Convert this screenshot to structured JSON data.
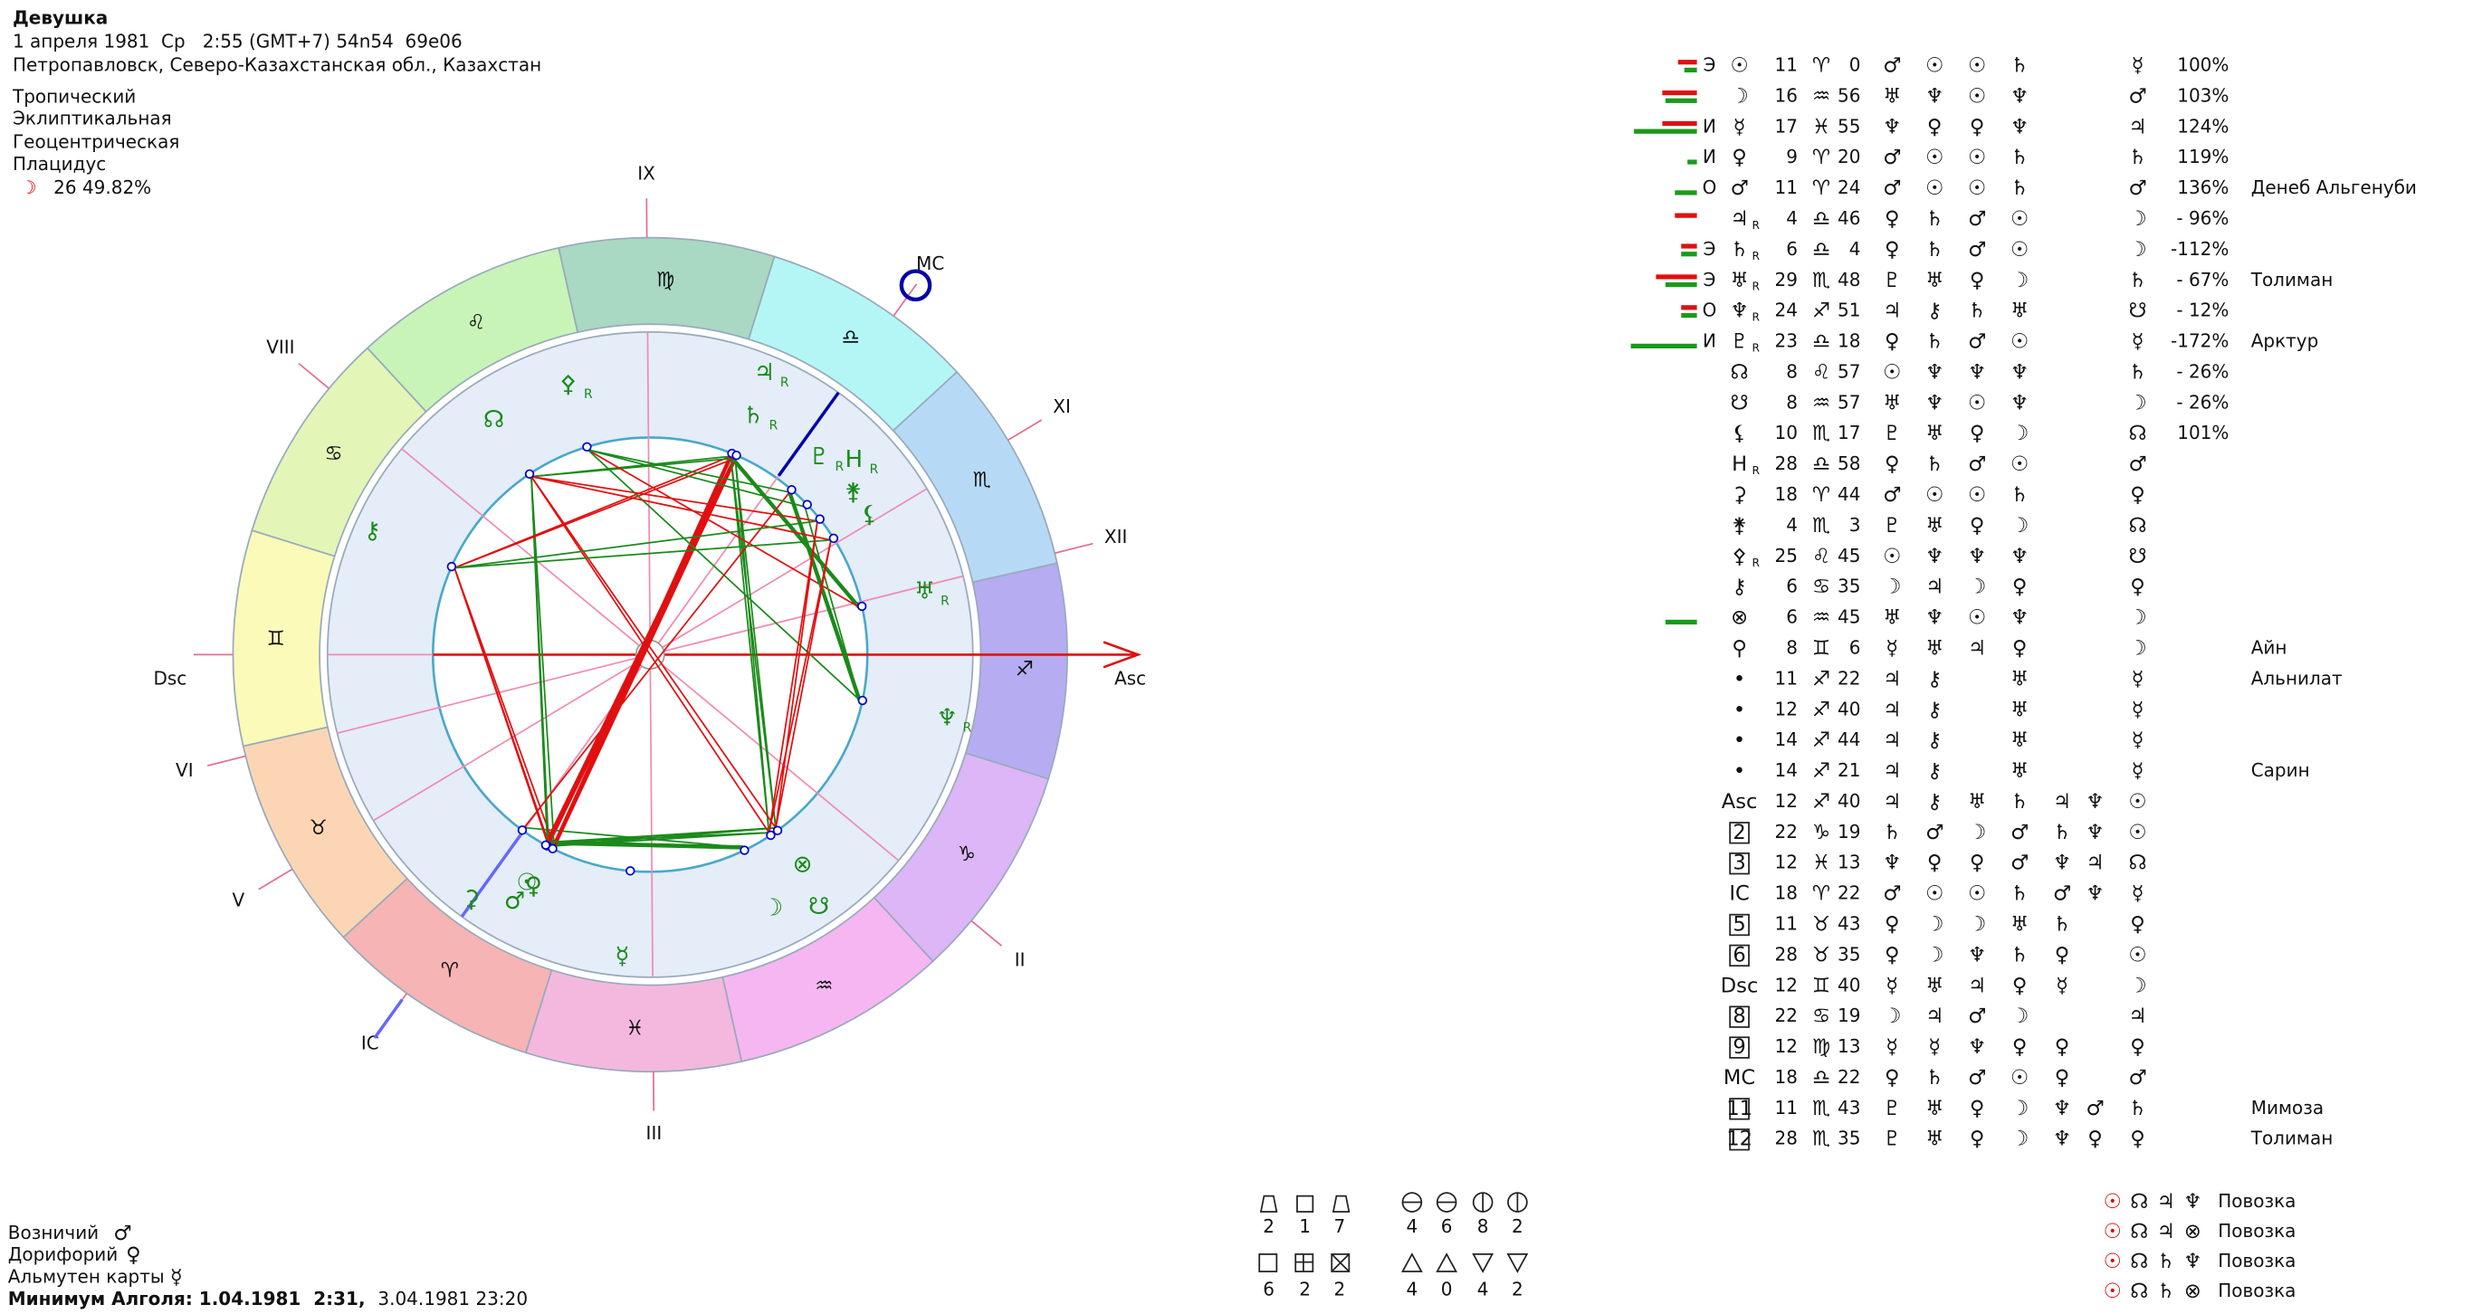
{
  "header": {
    "name": "Девушка",
    "datetime": "1 апреля 1981  Ср   2:55 (GMT+7) 54n54  69e06",
    "place": "Петропавловск, Северо-Казахстанская обл., Казахстан",
    "settings": [
      "Тропический",
      "Эклиптикальная",
      "Геоцентрическая",
      "Плацидус"
    ],
    "moon": {
      "glyph": "☽",
      "value": "26 49.82%"
    }
  },
  "wheel": {
    "signs": [
      "♈",
      "♉",
      "♊",
      "♋",
      "♌",
      "♍",
      "♎",
      "♏",
      "♐",
      "♑",
      "♒",
      "♓"
    ],
    "houses": [
      "Asc",
      "II",
      "III",
      "IC",
      "V",
      "VI",
      "Dsc",
      "VIII",
      "IX",
      "MC",
      "XI",
      "XII"
    ]
  },
  "table": {
    "rows": [
      {
        "tag": "Э",
        "body": "☉",
        "deg": 11,
        "sign": "♈",
        "min": 0,
        "rulers": [
          "♂",
          "☉",
          "☉",
          "♄"
        ],
        "alm": "☿",
        "pct": "100%"
      },
      {
        "body": "☽",
        "deg": 16,
        "sign": "♒",
        "min": 56,
        "rulers": [
          "♅",
          "♆",
          "☉",
          "♆"
        ],
        "alm": "♂",
        "pct": "103%"
      },
      {
        "tag": "И",
        "body": "☿",
        "deg": 17,
        "sign": "♓",
        "min": 55,
        "rulers": [
          "♆",
          "♀",
          "♀",
          "♆"
        ],
        "alm": "♃",
        "pct": "124%"
      },
      {
        "tag": "И",
        "body": "♀",
        "deg": 9,
        "sign": "♈",
        "min": 20,
        "rulers": [
          "♂",
          "☉",
          "☉",
          "♄"
        ],
        "alm": "♄",
        "pct": "119%"
      },
      {
        "tag": "О",
        "body": "♂",
        "deg": 11,
        "sign": "♈",
        "min": 24,
        "rulers": [
          "♂",
          "☉",
          "☉",
          "♄"
        ],
        "alm": "♂",
        "pct": "136%",
        "star": "Денеб Альгенуби"
      },
      {
        "body": "♃",
        "retro": "R",
        "deg": 4,
        "sign": "♎",
        "min": 46,
        "rulers": [
          "♀",
          "♄",
          "♂",
          "☉"
        ],
        "alm": "☽",
        "pct": "- 96%"
      },
      {
        "tag": "Э",
        "body": "♄",
        "retro": "R",
        "deg": 6,
        "sign": "♎",
        "min": 4,
        "rulers": [
          "♀",
          "♄",
          "♂",
          "☉"
        ],
        "alm": "☽",
        "pct": "-112%"
      },
      {
        "tag": "Э",
        "body": "♅",
        "retro": "R",
        "deg": 29,
        "sign": "♏",
        "min": 48,
        "rulers": [
          "♇",
          "♅",
          "♀",
          "☽"
        ],
        "alm": "♄",
        "pct": "- 67%",
        "star": "Толиман"
      },
      {
        "tag": "О",
        "body": "♆",
        "retro": "R",
        "deg": 24,
        "sign": "♐",
        "min": 51,
        "rulers": [
          "♃",
          "⚷",
          "♄",
          "♅"
        ],
        "alm": "☋",
        "pct": "- 12%"
      },
      {
        "tag": "И",
        "body": "♇",
        "retro": "R",
        "deg": 23,
        "sign": "♎",
        "min": 18,
        "rulers": [
          "♀",
          "♄",
          "♂",
          "☉"
        ],
        "alm": "☿",
        "pct": "-172%",
        "star": "Арктур"
      },
      {
        "body": "☊",
        "deg": 8,
        "sign": "♌",
        "min": 57,
        "rulers": [
          "☉",
          "♆",
          "♆",
          "♆"
        ],
        "alm": "♄",
        "pct": "- 26%"
      },
      {
        "body": "☋",
        "deg": 8,
        "sign": "♒",
        "min": 57,
        "rulers": [
          "♅",
          "♆",
          "☉",
          "♆"
        ],
        "alm": "☽",
        "pct": "- 26%"
      },
      {
        "body": "⚸",
        "deg": 10,
        "sign": "♏",
        "min": 17,
        "rulers": [
          "♇",
          "♅",
          "♀",
          "☽"
        ],
        "alm": "☊",
        "pct": "101%"
      },
      {
        "body": "H",
        "retro": "R",
        "deg": 28,
        "sign": "♎",
        "min": 58,
        "rulers": [
          "♀",
          "♄",
          "♂",
          "☉"
        ],
        "alm": "♂"
      },
      {
        "body": "⚳",
        "deg": 18,
        "sign": "♈",
        "min": 44,
        "rulers": [
          "♂",
          "☉",
          "☉",
          "♄"
        ],
        "alm": "♀"
      },
      {
        "body": "⚵",
        "deg": 4,
        "sign": "♏",
        "min": 3,
        "rulers": [
          "♇",
          "♅",
          "♀",
          "☽"
        ],
        "alm": "☊"
      },
      {
        "body": "⚴",
        "retro": "R",
        "deg": 25,
        "sign": "♌",
        "min": 45,
        "rulers": [
          "☉",
          "♆",
          "♆",
          "♆"
        ],
        "alm": "☋"
      },
      {
        "body": "⚷",
        "deg": 6,
        "sign": "♋",
        "min": 35,
        "rulers": [
          "☽",
          "♃",
          "☽",
          "♀"
        ],
        "alm": "♀"
      },
      {
        "body": "⊗",
        "deg": 6,
        "sign": "♒",
        "min": 45,
        "rulers": [
          "♅",
          "♆",
          "☉",
          "♆"
        ],
        "alm": "☽"
      },
      {
        "body": "⚲",
        "deg": 8,
        "sign": "♊",
        "min": 6,
        "rulers": [
          "☿",
          "♅",
          "♃",
          "♀"
        ],
        "alm": "☽",
        "star": "Айн"
      },
      {
        "body": "•",
        "deg": 11,
        "sign": "♐",
        "min": 22,
        "rulers": [
          "♃",
          "⚷",
          null,
          "♅"
        ],
        "alm": "☿",
        "star": "Альнилат"
      },
      {
        "body": "•",
        "deg": 12,
        "sign": "♐",
        "min": 40,
        "rulers": [
          "♃",
          "⚷",
          null,
          "♅"
        ],
        "alm": "☿"
      },
      {
        "body": "•",
        "deg": 14,
        "sign": "♐",
        "min": 44,
        "rulers": [
          "♃",
          "⚷",
          null,
          "♅"
        ],
        "alm": "☿"
      },
      {
        "body": "•",
        "deg": 14,
        "sign": "♐",
        "min": 21,
        "rulers": [
          "♃",
          "⚷",
          null,
          "♅"
        ],
        "alm": "☿",
        "star": "Сарин"
      },
      {
        "body": "Asc",
        "deg": 12,
        "sign": "♐",
        "min": 40,
        "rulers": [
          "♃",
          "⚷",
          "♅",
          "♄"
        ],
        "extra": [
          "♃",
          "♆",
          "☉"
        ]
      },
      {
        "body": "2",
        "deg": 22,
        "sign": "♑",
        "min": 19,
        "rulers": [
          "♄",
          "♂",
          "☽",
          "♂"
        ],
        "extra": [
          "♄",
          "♆",
          "☉"
        ]
      },
      {
        "body": "3",
        "deg": 12,
        "sign": "♓",
        "min": 13,
        "rulers": [
          "♆",
          "♀",
          "♀",
          "♂"
        ],
        "extra": [
          "♆",
          "♃",
          "☊"
        ]
      },
      {
        "body": "IC",
        "deg": 18,
        "sign": "♈",
        "min": 22,
        "rulers": [
          "♂",
          "☉",
          "☉",
          "♄"
        ],
        "extra": [
          "♂",
          "♆",
          "☿"
        ]
      },
      {
        "body": "5",
        "deg": 11,
        "sign": "♉",
        "min": 43,
        "rulers": [
          "♀",
          "☽",
          "☽",
          "♅"
        ],
        "extra": [
          "♄",
          null,
          "♀"
        ]
      },
      {
        "body": "6",
        "deg": 28,
        "sign": "♉",
        "min": 35,
        "rulers": [
          "♀",
          "☽",
          "♆",
          "♄"
        ],
        "extra": [
          "♀",
          null,
          "☉"
        ]
      },
      {
        "body": "Dsc",
        "deg": 12,
        "sign": "♊",
        "min": 40,
        "rulers": [
          "☿",
          "♅",
          "♃",
          "♀"
        ],
        "extra": [
          "☿",
          null,
          "☽"
        ]
      },
      {
        "body": "8",
        "deg": 22,
        "sign": "♋",
        "min": 19,
        "rulers": [
          "☽",
          "♃",
          "♂",
          "☽"
        ],
        "extra": [
          null,
          null,
          "♃"
        ]
      },
      {
        "body": "9",
        "deg": 12,
        "sign": "♍",
        "min": 13,
        "rulers": [
          "☿",
          "☿",
          "♆",
          "♀"
        ],
        "extra": [
          "♀",
          null,
          "♀"
        ]
      },
      {
        "body": "MC",
        "deg": 18,
        "sign": "♎",
        "min": 22,
        "rulers": [
          "♀",
          "♄",
          "♂",
          "☉"
        ],
        "extra": [
          "♀",
          null,
          "♂"
        ]
      },
      {
        "body": "11",
        "deg": 11,
        "sign": "♏",
        "min": 43,
        "rulers": [
          "♇",
          "♅",
          "♀",
          "☽"
        ],
        "extra": [
          "♆",
          "♂",
          "♄"
        ],
        "star": "Мимоза"
      },
      {
        "body": "12",
        "deg": 28,
        "sign": "♏",
        "min": 35,
        "rulers": [
          "♇",
          "♅",
          "♀",
          "☽"
        ],
        "extra": [
          "♆",
          "♀",
          "♀"
        ],
        "star": "Толиман"
      }
    ]
  },
  "patterns": [
    [
      2,
      1,
      7
    ],
    [
      4,
      6,
      8,
      2
    ],
    [
      6,
      2,
      2
    ],
    [
      4,
      0,
      4,
      2
    ]
  ],
  "footer": {
    "lines": [
      {
        "label": "Возничий",
        "glyph": "♂"
      },
      {
        "label": "Дорифорий",
        "glyph": "♀"
      },
      {
        "label": "Альмутен карты",
        "glyph": "☿"
      }
    ],
    "algol": {
      "label": "Минимум Алголя: 1.04.1981  2:31,",
      "rest": "3.04.1981 23:20"
    }
  },
  "carts": [
    {
      "glyphs": [
        "☉",
        "☊",
        "♃",
        "♆"
      ],
      "label": "Повозка"
    },
    {
      "glyphs": [
        "☉",
        "☊",
        "♃",
        "⊗"
      ],
      "label": "Повозка"
    },
    {
      "glyphs": [
        "☉",
        "☊",
        "♄",
        "♆"
      ],
      "label": "Повозка"
    },
    {
      "glyphs": [
        "☉",
        "☊",
        "♄",
        "⊗"
      ],
      "label": "Повозка"
    }
  ]
}
